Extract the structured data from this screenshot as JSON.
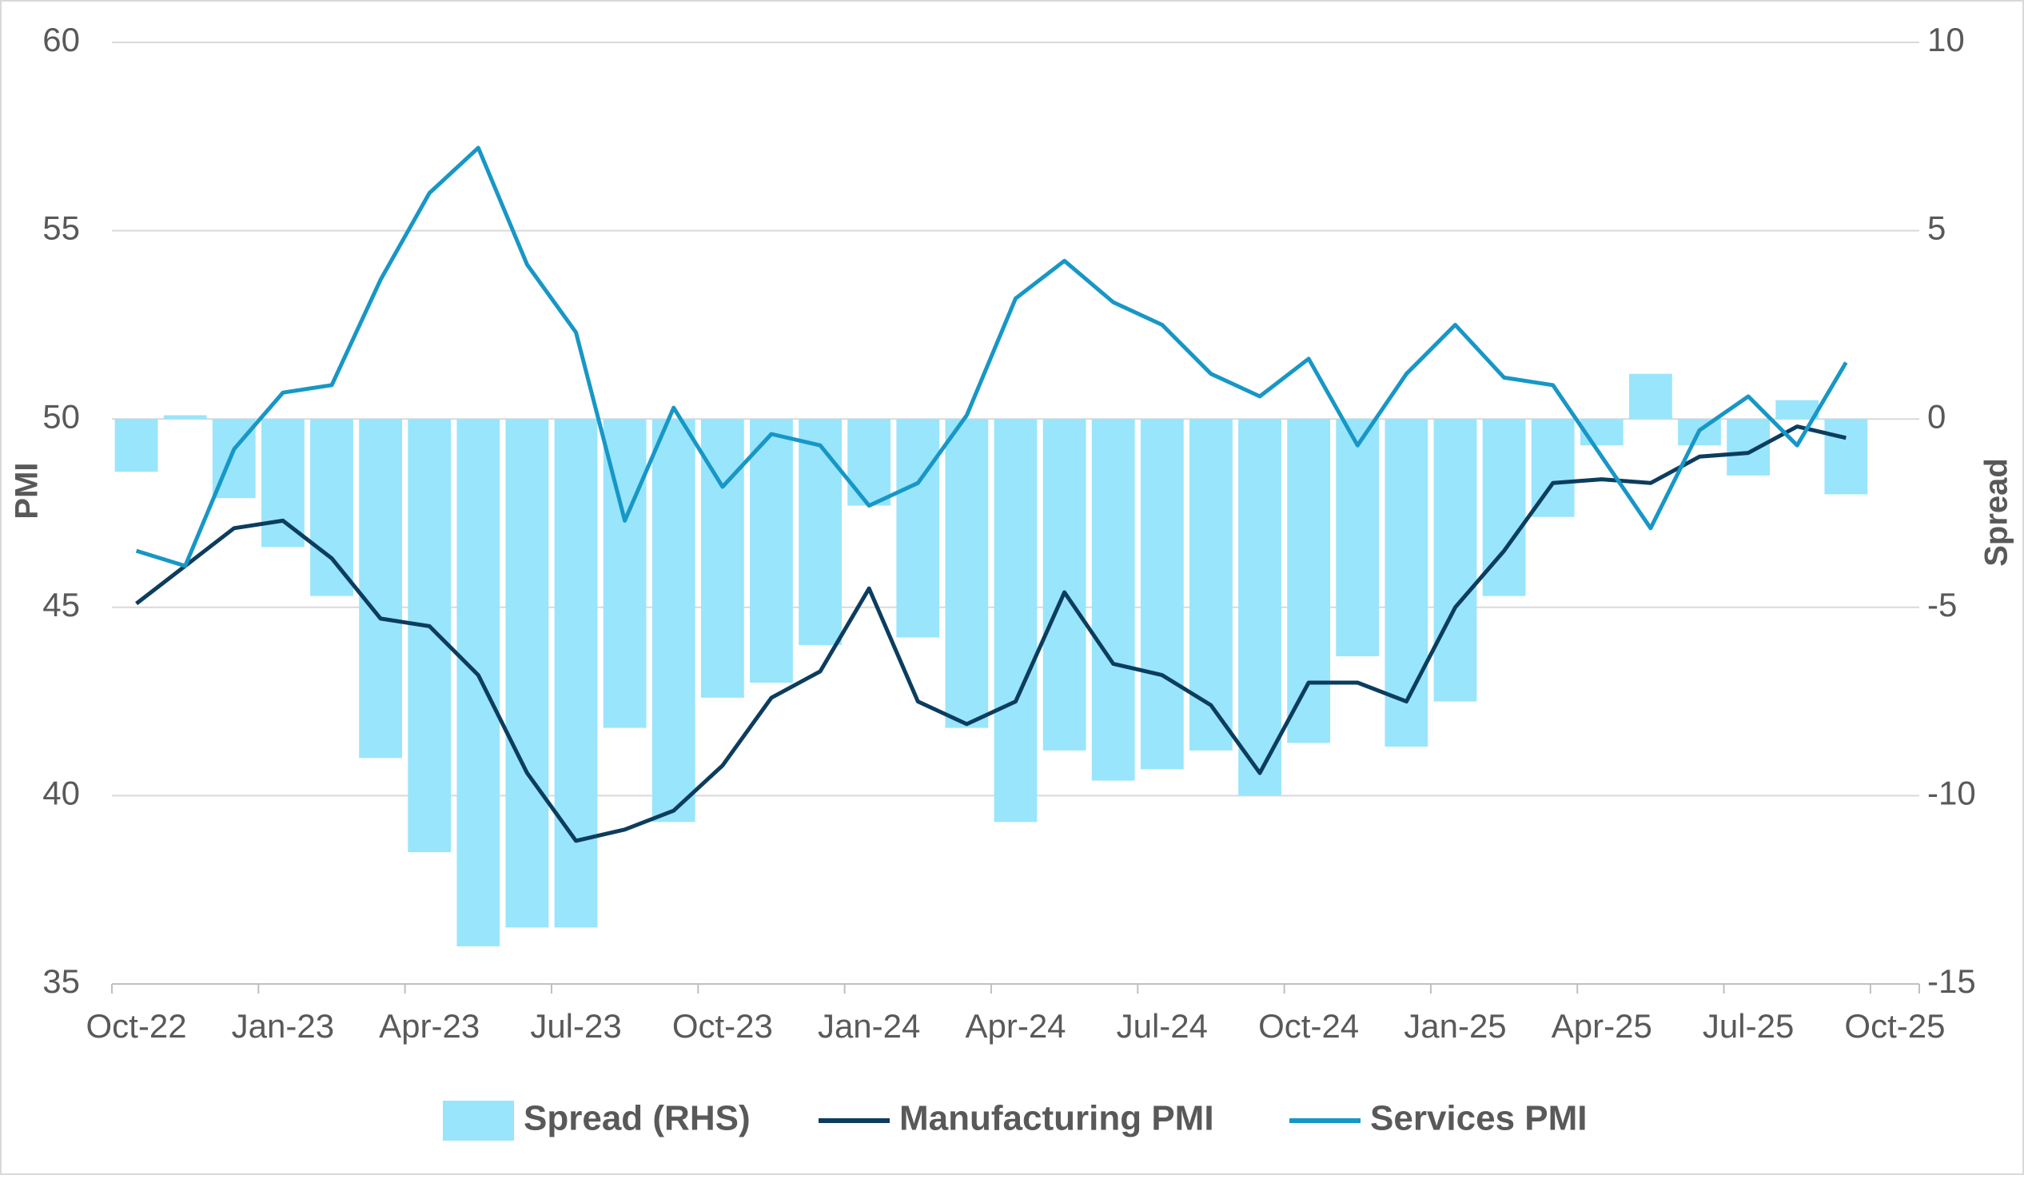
{
  "chart_data": {
    "type": "combo",
    "ylabel": "PMI",
    "y2label": "Spread",
    "categories": [
      "Oct-22",
      null,
      null,
      "Jan-23",
      null,
      null,
      "Apr-23",
      null,
      null,
      "Jul-23",
      null,
      null,
      "Oct-23",
      null,
      null,
      "Jan-24",
      null,
      null,
      "Apr-24",
      null,
      null,
      "Jul-24",
      null,
      null,
      "Oct-24",
      null,
      null,
      "Jan-25",
      null,
      null,
      "Apr-25",
      null,
      null,
      "Jul-25",
      null,
      null,
      "Oct-25"
    ],
    "ylim": [
      35,
      60
    ],
    "yticks": [
      35,
      40,
      45,
      50,
      55,
      60
    ],
    "y2lim": [
      -15,
      10
    ],
    "y2ticks": [
      -15,
      -10,
      -5,
      0,
      5,
      10
    ],
    "grid": true,
    "legend": "bottom",
    "series": [
      {
        "name": "Spread (RHS)",
        "type": "bar",
        "axis": "y2",
        "color": "#99e5fc",
        "values": [
          -1.4,
          0.1,
          -2.1,
          -3.4,
          -4.7,
          -9.0,
          -11.5,
          -14.0,
          -13.5,
          -13.5,
          -8.2,
          -10.7,
          -7.4,
          -7.0,
          -6.0,
          -2.3,
          -5.8,
          -8.2,
          -10.7,
          -8.8,
          -9.6,
          -9.3,
          -8.8,
          -10.0,
          -8.6,
          -6.3,
          -8.7,
          -7.5,
          -4.7,
          -2.6,
          -0.7,
          1.2,
          -0.7,
          -1.5,
          0.5,
          -2.0,
          null
        ]
      },
      {
        "name": "Manufacturing PMI",
        "type": "line",
        "color": "#0c3d5e",
        "values": [
          45.1,
          46.1,
          47.1,
          47.3,
          46.3,
          44.7,
          44.5,
          43.2,
          40.6,
          38.8,
          39.1,
          39.6,
          40.8,
          42.6,
          43.3,
          45.5,
          42.5,
          41.9,
          42.5,
          45.4,
          43.5,
          43.2,
          42.4,
          40.6,
          43.0,
          43.0,
          42.5,
          45.0,
          46.5,
          48.3,
          48.4,
          48.3,
          49.0,
          49.1,
          49.8,
          49.5,
          null
        ]
      },
      {
        "name": "Services PMI",
        "type": "line",
        "color": "#1797c6",
        "values": [
          46.5,
          46.1,
          49.2,
          50.7,
          50.9,
          53.7,
          56.0,
          57.2,
          54.1,
          52.3,
          47.3,
          50.3,
          48.2,
          49.6,
          49.3,
          47.7,
          48.3,
          50.1,
          53.2,
          54.2,
          53.1,
          52.5,
          51.2,
          50.6,
          51.6,
          49.3,
          51.2,
          52.5,
          51.1,
          50.9,
          49.0,
          47.1,
          49.7,
          50.6,
          49.3,
          51.5,
          null
        ]
      }
    ]
  }
}
